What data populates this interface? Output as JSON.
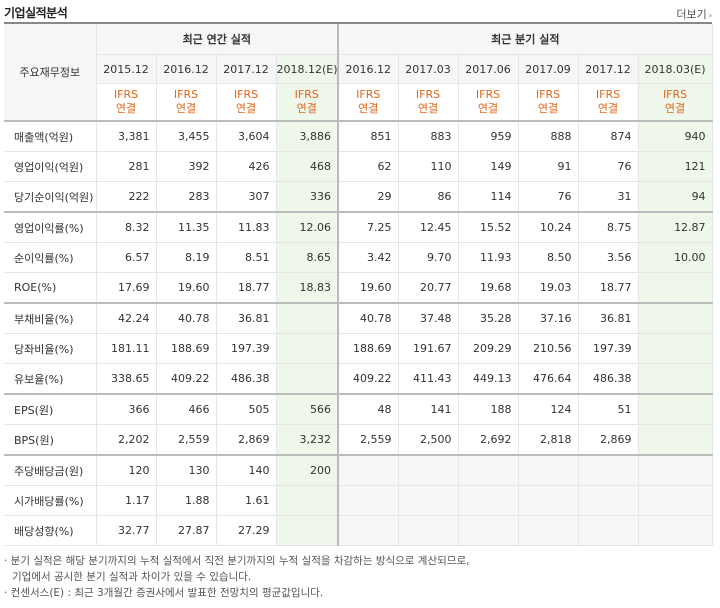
{
  "header": {
    "title": "기업실적분석",
    "more_label": "더보기"
  },
  "table": {
    "row_header": "주요재무정보",
    "groups": {
      "annual": "최근 연간 실적",
      "quarterly": "최근 분기 실적"
    },
    "periods": [
      "2015.12",
      "2016.12",
      "2017.12",
      "2018.12(E)",
      "2016.12",
      "2017.03",
      "2017.06",
      "2017.09",
      "2017.12",
      "2018.03(E)"
    ],
    "basis_top": "IFRS",
    "basis_bottom": "연결",
    "rows": [
      {
        "label": "매출액(억원)",
        "values": [
          "3,381",
          "3,455",
          "3,604",
          "3,886",
          "851",
          "883",
          "959",
          "888",
          "874",
          "940"
        ]
      },
      {
        "label": "영업이익(억원)",
        "values": [
          "281",
          "392",
          "426",
          "468",
          "62",
          "110",
          "149",
          "91",
          "76",
          "121"
        ]
      },
      {
        "label": "당기순이익(억원)",
        "values": [
          "222",
          "283",
          "307",
          "336",
          "29",
          "86",
          "114",
          "76",
          "31",
          "94"
        ]
      },
      {
        "label": "영업이익률(%)",
        "values": [
          "8.32",
          "11.35",
          "11.83",
          "12.06",
          "7.25",
          "12.45",
          "15.52",
          "10.24",
          "8.75",
          "12.87"
        ]
      },
      {
        "label": "순이익률(%)",
        "values": [
          "6.57",
          "8.19",
          "8.51",
          "8.65",
          "3.42",
          "9.70",
          "11.93",
          "8.50",
          "3.56",
          "10.00"
        ]
      },
      {
        "label": "ROE(%)",
        "values": [
          "17.69",
          "19.60",
          "18.77",
          "18.83",
          "19.60",
          "20.77",
          "19.68",
          "19.03",
          "18.77",
          ""
        ]
      },
      {
        "label": "부채비율(%)",
        "values": [
          "42.24",
          "40.78",
          "36.81",
          "",
          "40.78",
          "37.48",
          "35.28",
          "37.16",
          "36.81",
          ""
        ]
      },
      {
        "label": "당좌비율(%)",
        "values": [
          "181.11",
          "188.69",
          "197.39",
          "",
          "188.69",
          "191.67",
          "209.29",
          "210.56",
          "197.39",
          ""
        ]
      },
      {
        "label": "유보율(%)",
        "values": [
          "338.65",
          "409.22",
          "486.38",
          "",
          "409.22",
          "411.43",
          "449.13",
          "476.64",
          "486.38",
          ""
        ]
      },
      {
        "label": "EPS(원)",
        "values": [
          "366",
          "466",
          "505",
          "566",
          "48",
          "141",
          "188",
          "124",
          "51",
          ""
        ]
      },
      {
        "label": "BPS(원)",
        "values": [
          "2,202",
          "2,559",
          "2,869",
          "3,232",
          "2,559",
          "2,500",
          "2,692",
          "2,818",
          "2,869",
          ""
        ]
      },
      {
        "label": "주당배당금(원)",
        "values": [
          "120",
          "130",
          "140",
          "200",
          "",
          "",
          "",
          "",
          "",
          ""
        ]
      },
      {
        "label": "시가배당률(%)",
        "values": [
          "1.17",
          "1.88",
          "1.61",
          "",
          "",
          "",
          "",
          "",
          "",
          ""
        ]
      },
      {
        "label": "배당성향(%)",
        "values": [
          "32.77",
          "27.87",
          "27.29",
          "",
          "",
          "",
          "",
          "",
          "",
          ""
        ]
      }
    ]
  },
  "notes": [
    "· 분기 실적은 해당 분기까지의 누적 실적에서 직전 분기까지의 누적 실적을 차감하는 방식으로 계산되므로,",
    "  기업에서 공시한 분기 실적과 차이가 있을 수 있습니다.",
    "· 컨센서스(E) : 최근 3개월간 증권사에서 발표한 전망치의 평균값입니다."
  ]
}
